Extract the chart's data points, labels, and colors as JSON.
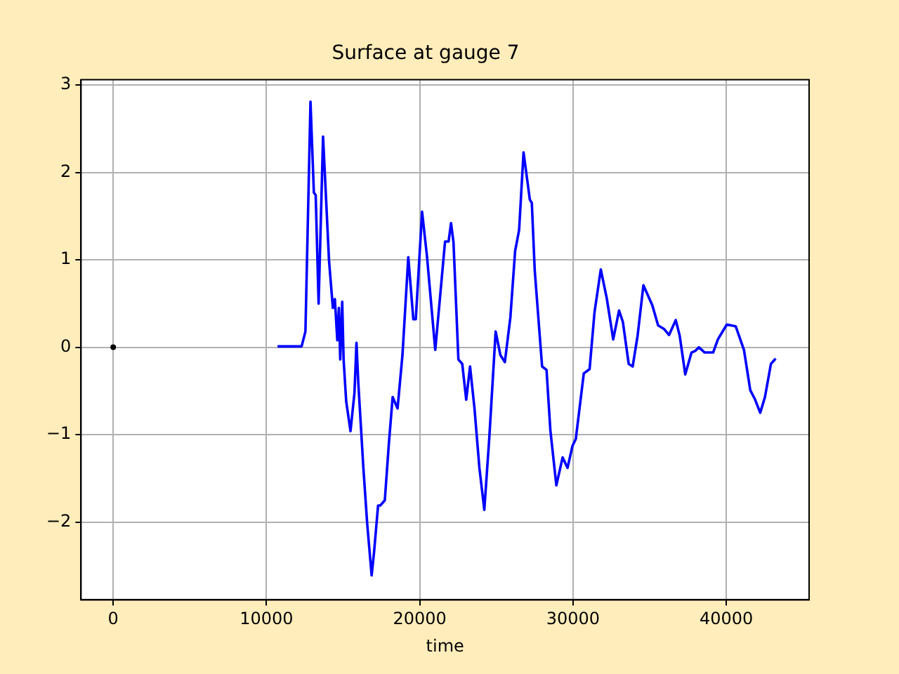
{
  "chart_data": {
    "type": "line",
    "title": "Surface at gauge 7",
    "xlabel": "time",
    "xlim": [
      -2100,
      45400
    ],
    "ylim": [
      -2.89,
      3.06
    ],
    "xticks": [
      0,
      10000,
      20000,
      30000,
      40000
    ],
    "yticks": [
      -2,
      -1,
      0,
      1,
      2,
      3
    ],
    "grid": true,
    "legend": false,
    "marker": "none",
    "line_style": "solid",
    "series": [
      {
        "type": "scatter",
        "color": "#000000",
        "marker": "circle",
        "x": [
          0
        ],
        "values": [
          0
        ]
      },
      {
        "color": "#0000ff",
        "x": [
          10720,
          12290,
          12540,
          12870,
          13090,
          13210,
          13400,
          13690,
          14080,
          14330,
          14460,
          14620,
          14720,
          14810,
          14940,
          15030,
          15200,
          15480,
          15740,
          15870,
          15990,
          16320,
          16570,
          16860,
          17020,
          17280,
          17430,
          17720,
          17980,
          18230,
          18550,
          18870,
          19250,
          19580,
          19740,
          20150,
          20470,
          21010,
          21650,
          21880,
          22040,
          22200,
          22520,
          22770,
          23030,
          23280,
          23570,
          23890,
          24210,
          24530,
          24950,
          25260,
          25550,
          25910,
          26220,
          26480,
          26770,
          27180,
          27310,
          27500,
          27980,
          28270,
          28520,
          28910,
          29320,
          29640,
          29960,
          30180,
          30700,
          31080,
          31400,
          31810,
          32200,
          32620,
          33000,
          33250,
          33630,
          33890,
          34210,
          34590,
          35170,
          35550,
          35930,
          36260,
          36700,
          36960,
          37320,
          37730,
          37990,
          38210,
          38590,
          39140,
          39450,
          40030,
          40610,
          41150,
          41560,
          41880,
          42210,
          42520,
          42910,
          43220
        ],
        "values": [
          0.01,
          0.01,
          0.18,
          2.81,
          1.77,
          1.74,
          0.5,
          2.41,
          0.99,
          0.45,
          0.55,
          0.08,
          0.45,
          -0.14,
          0.52,
          -0.14,
          -0.62,
          -0.96,
          -0.52,
          0.05,
          -0.41,
          -1.38,
          -2.02,
          -2.61,
          -2.34,
          -1.81,
          -1.81,
          -1.75,
          -1.11,
          -0.57,
          -0.7,
          -0.09,
          1.03,
          0.32,
          0.32,
          1.55,
          1.04,
          -0.03,
          1.21,
          1.21,
          1.42,
          1.2,
          -0.14,
          -0.19,
          -0.6,
          -0.22,
          -0.7,
          -1.38,
          -1.86,
          -1.05,
          0.18,
          -0.09,
          -0.17,
          0.34,
          1.1,
          1.34,
          2.23,
          1.69,
          1.65,
          0.88,
          -0.22,
          -0.26,
          -0.95,
          -1.58,
          -1.26,
          -1.38,
          -1.13,
          -1.05,
          -0.3,
          -0.25,
          0.4,
          0.89,
          0.56,
          0.09,
          0.42,
          0.29,
          -0.19,
          -0.22,
          0.13,
          0.71,
          0.48,
          0.25,
          0.21,
          0.14,
          0.31,
          0.13,
          -0.31,
          -0.06,
          -0.04,
          0,
          -0.06,
          -0.06,
          0.09,
          0.26,
          0.24,
          -0.03,
          -0.49,
          -0.6,
          -0.75,
          -0.57,
          -0.19,
          -0.13
        ]
      }
    ]
  }
}
